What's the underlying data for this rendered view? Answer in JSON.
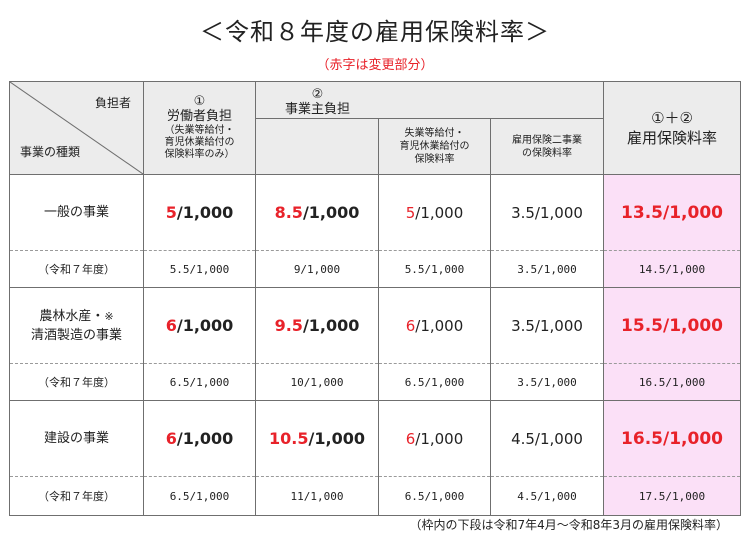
{
  "title": "＜令和８年度の雇用保険料率＞",
  "subtitle": "（赤字は変更部分）",
  "footnote": "（枠内の下段は令和7年4月～令和8年3月の雇用保険料率）",
  "header": {
    "burden_label": "負担者",
    "kind_label": "事業の種類",
    "worker_num": "①",
    "worker_title": "労働者負担",
    "worker_note1": "（失業等給付・",
    "worker_note2": "育児休業給付の",
    "worker_note3": "保険料率のみ）",
    "employer_num": "②",
    "employer_title": "事業主負担",
    "employer_sub1_line1": "失業等給付・",
    "employer_sub1_line2": "育児休業給付の",
    "employer_sub1_line3": "保険料率",
    "employer_sub2_line1": "雇用保険二事業",
    "employer_sub2_line2": "の保険料率",
    "total_num": "①＋②",
    "total_title": "雇用保険料率"
  },
  "rows": [
    {
      "label_line1": "一般の事業",
      "label_line2": "",
      "label_note": "",
      "worker_num": "5",
      "worker_rest": "/1,000",
      "employer_num": "8.5",
      "employer_rest": "/1,000",
      "emp_benefit_num": "5",
      "emp_benefit_rest": "/1,000",
      "emp_two": "3.5/1,000",
      "total": "13.5/1,000",
      "prev_label": "（令和７年度）",
      "prev_worker": "5.5/1,000",
      "prev_employer": "9/1,000",
      "prev_emp_benefit": "5.5/1,000",
      "prev_emp_two": "3.5/1,000",
      "prev_total": "14.5/1,000"
    },
    {
      "label_line1": "農林水産・",
      "label_line2": "清酒製造の事業",
      "label_note": "※",
      "worker_num": "6",
      "worker_rest": "/1,000",
      "employer_num": "9.5",
      "employer_rest": "/1,000",
      "emp_benefit_num": "6",
      "emp_benefit_rest": "/1,000",
      "emp_two": "3.5/1,000",
      "total": "15.5/1,000",
      "prev_label": "（令和７年度）",
      "prev_worker": "6.5/1,000",
      "prev_employer": "10/1,000",
      "prev_emp_benefit": "6.5/1,000",
      "prev_emp_two": "3.5/1,000",
      "prev_total": "16.5/1,000"
    },
    {
      "label_line1": "建設の事業",
      "label_line2": "",
      "label_note": "",
      "worker_num": "6",
      "worker_rest": "/1,000",
      "employer_num": "10.5",
      "employer_rest": "/1,000",
      "emp_benefit_num": "6",
      "emp_benefit_rest": "/1,000",
      "emp_two": "4.5/1,000",
      "total": "16.5/1,000",
      "prev_label": "（令和７年度）",
      "prev_worker": "6.5/1,000",
      "prev_employer": "11/1,000",
      "prev_emp_benefit": "6.5/1,000",
      "prev_emp_two": "4.5/1,000",
      "prev_total": "17.5/1,000"
    }
  ],
  "colors": {
    "changed_text": "#e8222a",
    "header_background": "#ececec",
    "total_column_background": "#fbe0f7"
  }
}
